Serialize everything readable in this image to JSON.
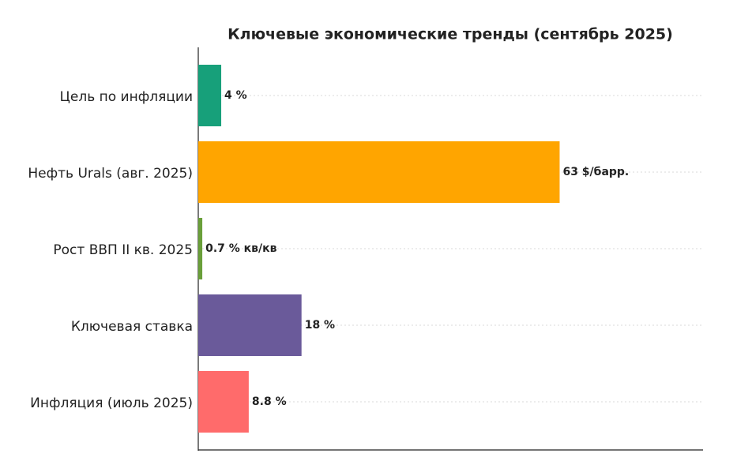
{
  "chart_data": {
    "type": "hbar",
    "title": "Ключевые экономические тренды (сентябрь 2025)",
    "categories": [
      "Цель по инфляции",
      "Нефть Urals (авг. 2025)",
      "Рост ВВП II кв. 2025",
      "Ключевая ставка",
      "Инфляция (июль 2025)"
    ],
    "values": [
      4,
      63,
      0.7,
      18,
      8.8
    ],
    "value_labels": [
      "4 %",
      "63 $/барр.",
      "0.7 % кв/кв",
      "18 %",
      "8.8 %"
    ],
    "colors": [
      "#17a07a",
      "#ffa500",
      "#6a9f3a",
      "#6a5a9a",
      "#ff6b6b"
    ],
    "xlim": [
      0,
      88
    ],
    "grid": true
  }
}
